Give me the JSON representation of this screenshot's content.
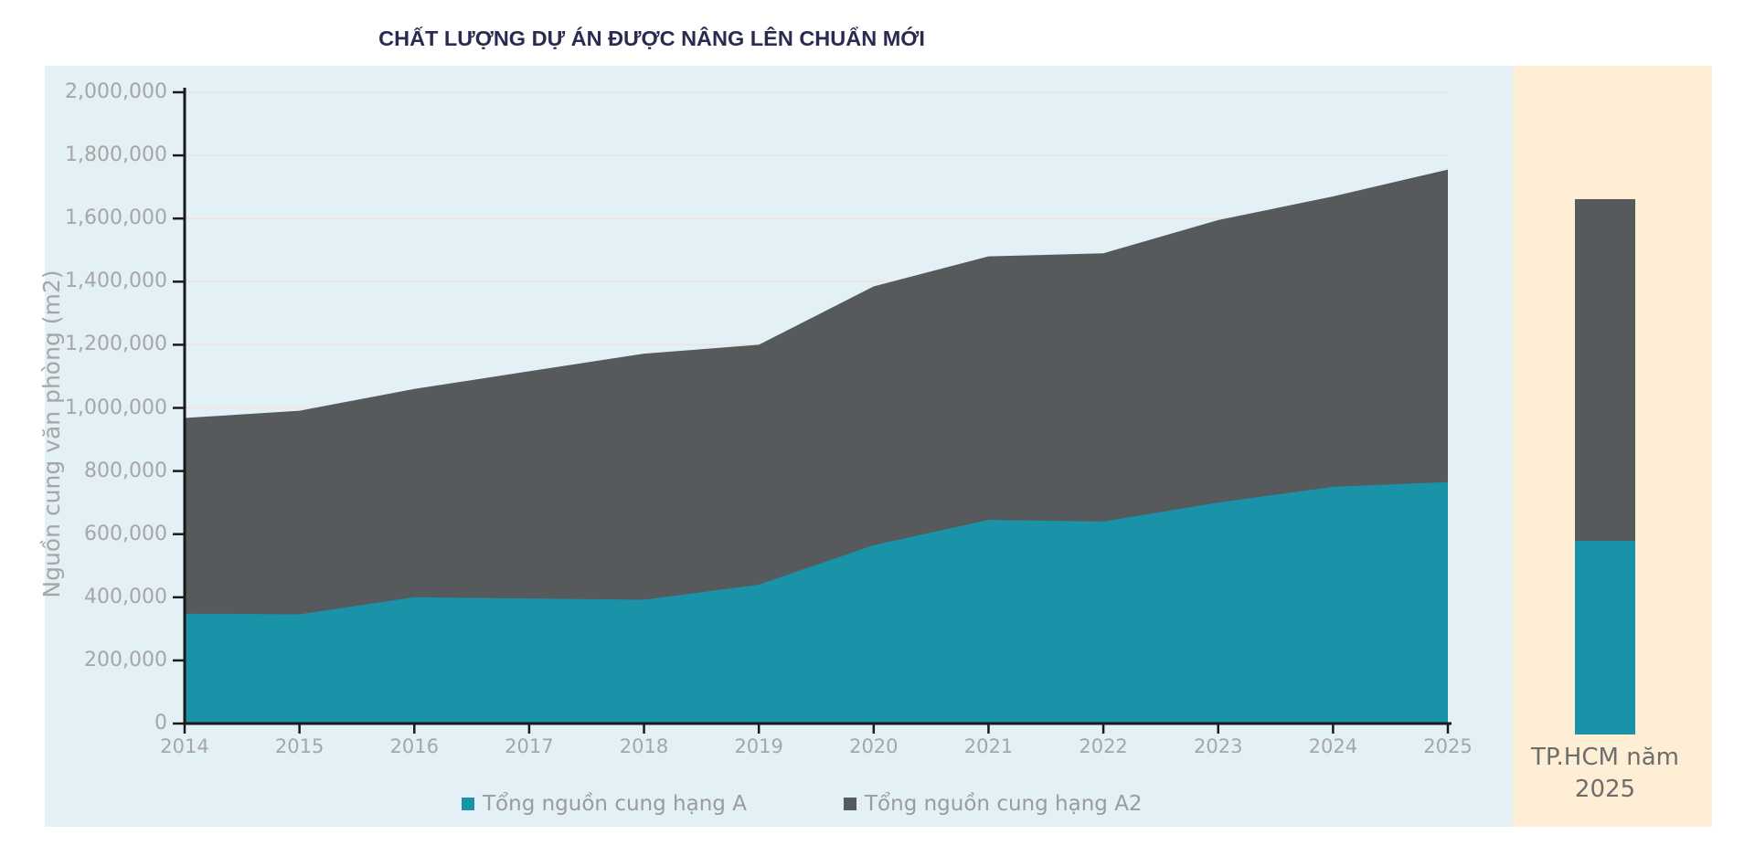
{
  "title": "CHẤT LƯỢNG DỰ ÁN ĐƯỢC NÂNG LÊN CHUẨN MỚI",
  "colors": {
    "series_a": "#1a93a9",
    "series_a2": "#565a5c",
    "panel_chart_bg": "#e3f0f5",
    "panel_side_bg": "#fdeed5",
    "title_text": "#2b2b52",
    "axis_line": "#1a1a1a",
    "gridline": "#eee2db",
    "tick_label": "#a6a6a6",
    "legend_text": "#9b9b9b",
    "side_label": "#6d6d6d"
  },
  "y_axis": {
    "title": "Nguồn cung văn phòng (m2)",
    "tick_labels": [
      "0",
      "200,000",
      "400,000",
      "600,000",
      "800,000",
      "1,000,000",
      "1,200,000",
      "1,400,000",
      "1,600,000",
      "1,800,000",
      "2,000,000"
    ]
  },
  "x_axis": {
    "tick_labels": [
      "2014",
      "2015",
      "2016",
      "2017",
      "2018",
      "2019",
      "2020",
      "2021",
      "2022",
      "2023",
      "2024",
      "2025"
    ]
  },
  "legend": {
    "items": [
      {
        "label": "Tổng nguồn cung hạng A"
      },
      {
        "label": "Tổng nguồn cung hạng A2"
      }
    ]
  },
  "side_panel": {
    "label_line1": "TP.HCM năm",
    "label_line2": "2025"
  },
  "chart_data": {
    "type": "area",
    "stacked": true,
    "title": "CHẤT LƯỢNG DỰ ÁN ĐƯỢC NÂNG LÊN CHUẨN MỚI",
    "ylabel": "Nguồn cung văn phòng (m2)",
    "ylim": [
      0,
      2000000
    ],
    "ytick_step": 200000,
    "grid": true,
    "legend_position": "bottom",
    "interpolation": "linear",
    "categories": [
      2014,
      2015,
      2016,
      2017,
      2018,
      2019,
      2020,
      2021,
      2022,
      2023,
      2024,
      2025
    ],
    "series": [
      {
        "name": "Tổng nguồn cung hạng A",
        "values": [
          348000,
          346000,
          400000,
          396000,
          392000,
          440000,
          565000,
          645000,
          640000,
          700000,
          750000,
          765000
        ]
      },
      {
        "name": "Tổng nguồn cung hạng A2",
        "values": [
          620000,
          645000,
          660000,
          720000,
          780000,
          760000,
          820000,
          835000,
          850000,
          895000,
          920000,
          990000
        ]
      }
    ],
    "side_bar": {
      "category": "TP.HCM năm 2025",
      "series": [
        {
          "name": "Tổng nguồn cung hạng A",
          "value": 615000
        },
        {
          "name": "Tổng nguồn cung hạng A2",
          "value": 1080000
        }
      ]
    }
  }
}
